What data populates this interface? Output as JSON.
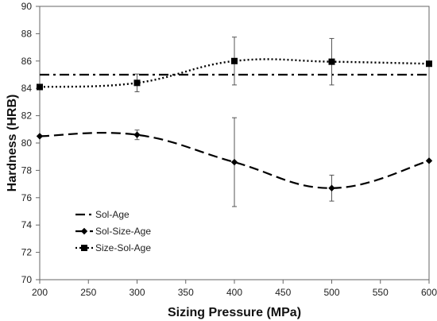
{
  "chart_data": {
    "type": "line",
    "title": "",
    "xlabel": "Sizing Pressure (MPa)",
    "ylabel": "Hardness (HRB)",
    "xlim": [
      200,
      600
    ],
    "ylim": [
      70,
      90
    ],
    "x_ticks": [
      200,
      250,
      300,
      350,
      400,
      450,
      500,
      550,
      600
    ],
    "y_ticks": [
      70,
      72,
      74,
      76,
      78,
      80,
      82,
      84,
      86,
      88,
      90
    ],
    "grid": false,
    "legend_position": "bottom-left",
    "series": [
      {
        "name": "Sol-Age",
        "style": "dash-dot",
        "marker": "none",
        "color": "#000000",
        "smooth": false,
        "x": [
          200,
          600
        ],
        "y": [
          85.0,
          85.0
        ],
        "error": []
      },
      {
        "name": "Sol-Size-Age",
        "style": "dashed",
        "marker": "diamond",
        "color": "#000000",
        "smooth": true,
        "x": [
          200,
          300,
          400,
          500,
          600
        ],
        "y": [
          80.5,
          80.6,
          78.6,
          76.7,
          78.7
        ],
        "error": [
          0,
          0.35,
          3.25,
          0.95,
          0
        ]
      },
      {
        "name": "Size-Sol-Age",
        "style": "dotted",
        "marker": "square",
        "color": "#000000",
        "smooth": true,
        "x": [
          200,
          300,
          400,
          500,
          600
        ],
        "y": [
          84.1,
          84.4,
          86.0,
          85.95,
          85.8
        ],
        "error": [
          0,
          0.65,
          1.75,
          1.7,
          0
        ]
      }
    ]
  }
}
